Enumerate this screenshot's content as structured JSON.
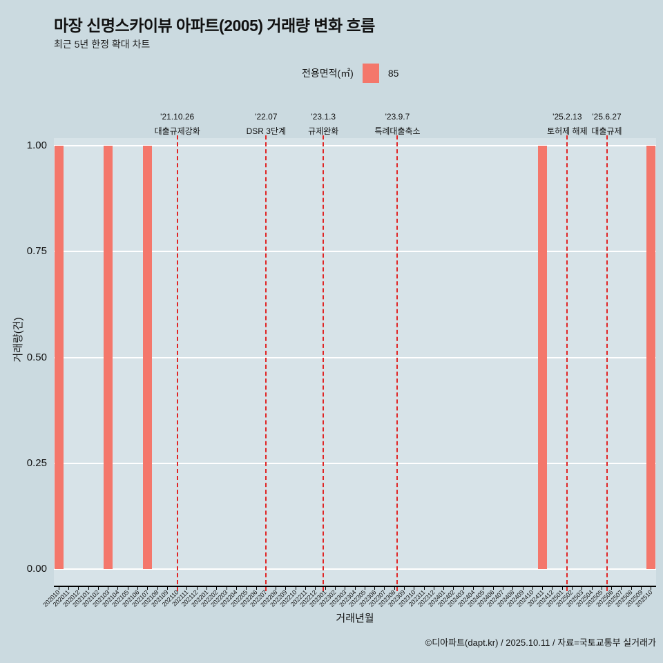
{
  "header": {
    "title": "마장 신명스카이뷰 아파트(2005) 거래량 변화 흐름",
    "subtitle": "최근 5년 한정 확대 차트"
  },
  "legend": {
    "label": "전용면적(㎡)",
    "value": "85",
    "swatch_color": "#f4776b"
  },
  "chart_data": {
    "type": "bar",
    "title": "마장 신명스카이뷰 아파트(2005) 거래량 변화 흐름",
    "xlabel": "거래년월",
    "ylabel": "거래량(건)",
    "ylim": [
      0,
      1.05
    ],
    "yticks": [
      "0.00",
      "0.25",
      "0.50",
      "0.75",
      "1.00"
    ],
    "grid": "horizontal-white",
    "legend_position": "top-center",
    "bar_color": "#f4776b",
    "annotation_line_color": "#e02424",
    "categories": [
      "202010",
      "202011",
      "202012",
      "202101",
      "202102",
      "202103",
      "202104",
      "202105",
      "202106",
      "202107",
      "202108",
      "202109",
      "202110",
      "202111",
      "202112",
      "202201",
      "202202",
      "202203",
      "202204",
      "202205",
      "202206",
      "202207",
      "202208",
      "202209",
      "202210",
      "202211",
      "202212",
      "202301",
      "202302",
      "202303",
      "202304",
      "202305",
      "202306",
      "202307",
      "202308",
      "202309",
      "202310",
      "202311",
      "202312",
      "202401",
      "202402",
      "202403",
      "202404",
      "202405",
      "202406",
      "202407",
      "202408",
      "202409",
      "202410",
      "202411",
      "202412",
      "202501",
      "202502",
      "202503",
      "202504",
      "202505",
      "202506",
      "202507",
      "202508",
      "202509",
      "202510"
    ],
    "values": [
      1,
      0,
      0,
      0,
      0,
      1,
      0,
      0,
      0,
      1,
      0,
      0,
      0,
      0,
      0,
      0,
      0,
      0,
      0,
      0,
      0,
      0,
      0,
      0,
      0,
      0,
      0,
      0,
      0,
      0,
      0,
      0,
      0,
      0,
      0,
      0,
      0,
      0,
      0,
      0,
      0,
      0,
      0,
      0,
      0,
      0,
      0,
      0,
      0,
      1,
      0,
      0,
      0,
      0,
      0,
      0,
      0,
      0,
      0,
      0,
      1
    ],
    "annotations": [
      {
        "date": "'21.10.26",
        "label": "대출규제강화",
        "x_index": 12.0
      },
      {
        "date": "'22.07",
        "label": "DSR 3단계",
        "x_index": 21.0
      },
      {
        "date": "'23.1.3",
        "label": "규제완화",
        "x_index": 26.8
      },
      {
        "date": "'23.9.7",
        "label": "특례대출축소",
        "x_index": 34.3
      },
      {
        "date": "'25.2.13",
        "label": "토허제 해제",
        "x_index": 51.5
      },
      {
        "date": "'25.6.27",
        "label": "대출규제",
        "x_index": 55.5
      }
    ]
  },
  "footer": {
    "text": "©디아파트(dapt.kr) / 2025.10.11 / 자료=국토교통부 실거래가"
  }
}
